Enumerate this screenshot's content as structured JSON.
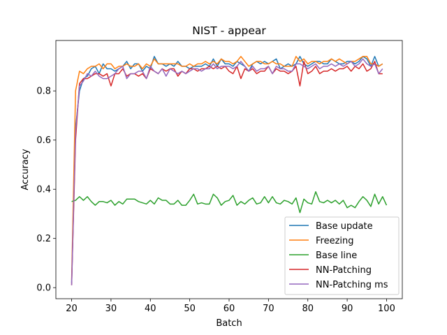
{
  "chart_data": {
    "type": "line",
    "title": "NIST - appear",
    "xlabel": "Batch",
    "ylabel": "Accuracy",
    "xlim": [
      16,
      104
    ],
    "ylim": [
      -0.045,
      1.005
    ],
    "xticks": [
      20,
      30,
      40,
      50,
      60,
      70,
      80,
      90,
      100
    ],
    "xtick_labels": [
      "20",
      "30",
      "40",
      "50",
      "60",
      "70",
      "80",
      "90",
      "100"
    ],
    "yticks": [
      0.0,
      0.2,
      0.4,
      0.6,
      0.8
    ],
    "ytick_labels": [
      "0.0",
      "0.2",
      "0.4",
      "0.6",
      "0.8"
    ],
    "legend_position": "lower-right",
    "grid": false,
    "x_start": 20,
    "series": [
      {
        "name": "Base update",
        "color": "#1f77b4",
        "values": [
          0.02,
          0.65,
          0.8,
          0.85,
          0.86,
          0.89,
          0.9,
          0.87,
          0.91,
          0.89,
          0.89,
          0.88,
          0.89,
          0.9,
          0.92,
          0.89,
          0.91,
          0.91,
          0.88,
          0.9,
          0.89,
          0.94,
          0.91,
          0.91,
          0.9,
          0.91,
          0.9,
          0.92,
          0.9,
          0.9,
          0.89,
          0.9,
          0.9,
          0.9,
          0.91,
          0.9,
          0.93,
          0.9,
          0.93,
          0.91,
          0.91,
          0.9,
          0.92,
          0.91,
          0.9,
          0.88,
          0.91,
          0.92,
          0.91,
          0.92,
          0.91,
          0.92,
          0.93,
          0.89,
          0.9,
          0.91,
          0.9,
          0.91,
          0.94,
          0.91,
          0.9,
          0.91,
          0.92,
          0.92,
          0.91,
          0.91,
          0.93,
          0.92,
          0.91,
          0.91,
          0.92,
          0.92,
          0.91,
          0.92,
          0.94,
          0.93,
          0.9,
          0.94,
          0.9,
          0.91
        ]
      },
      {
        "name": "Freezing",
        "color": "#ff7f0e",
        "values": [
          0.03,
          0.8,
          0.88,
          0.87,
          0.89,
          0.9,
          0.9,
          0.91,
          0.89,
          0.91,
          0.91,
          0.89,
          0.9,
          0.9,
          0.91,
          0.9,
          0.9,
          0.91,
          0.89,
          0.91,
          0.9,
          0.93,
          0.91,
          0.91,
          0.91,
          0.91,
          0.91,
          0.91,
          0.9,
          0.9,
          0.91,
          0.9,
          0.91,
          0.91,
          0.92,
          0.91,
          0.92,
          0.91,
          0.93,
          0.92,
          0.92,
          0.91,
          0.92,
          0.94,
          0.92,
          0.9,
          0.91,
          0.92,
          0.92,
          0.91,
          0.91,
          0.92,
          0.91,
          0.91,
          0.9,
          0.9,
          0.9,
          0.94,
          0.92,
          0.93,
          0.91,
          0.92,
          0.92,
          0.91,
          0.92,
          0.92,
          0.93,
          0.92,
          0.93,
          0.92,
          0.91,
          0.92,
          0.92,
          0.93,
          0.94,
          0.94,
          0.91,
          0.91,
          0.9,
          0.91
        ]
      },
      {
        "name": "Base line",
        "color": "#2ca02c",
        "values": [
          0.35,
          0.355,
          0.37,
          0.355,
          0.37,
          0.35,
          0.335,
          0.35,
          0.35,
          0.345,
          0.355,
          0.335,
          0.35,
          0.34,
          0.36,
          0.36,
          0.36,
          0.35,
          0.345,
          0.34,
          0.355,
          0.34,
          0.365,
          0.355,
          0.355,
          0.34,
          0.34,
          0.355,
          0.335,
          0.335,
          0.355,
          0.38,
          0.34,
          0.345,
          0.34,
          0.34,
          0.38,
          0.365,
          0.335,
          0.35,
          0.355,
          0.375,
          0.335,
          0.35,
          0.34,
          0.355,
          0.365,
          0.34,
          0.345,
          0.37,
          0.345,
          0.37,
          0.345,
          0.34,
          0.355,
          0.35,
          0.34,
          0.365,
          0.305,
          0.36,
          0.345,
          0.34,
          0.39,
          0.35,
          0.345,
          0.355,
          0.345,
          0.355,
          0.34,
          0.355,
          0.325,
          0.335,
          0.325,
          0.35,
          0.37,
          0.355,
          0.33,
          0.38,
          0.34,
          0.37,
          0.335
        ]
      },
      {
        "name": "NN-Patching",
        "color": "#d62728",
        "values": [
          0.01,
          0.6,
          0.83,
          0.85,
          0.85,
          0.86,
          0.87,
          0.87,
          0.86,
          0.87,
          0.82,
          0.87,
          0.87,
          0.89,
          0.86,
          0.87,
          0.87,
          0.86,
          0.87,
          0.85,
          0.89,
          0.88,
          0.87,
          0.89,
          0.88,
          0.89,
          0.89,
          0.86,
          0.88,
          0.87,
          0.89,
          0.89,
          0.88,
          0.89,
          0.89,
          0.9,
          0.89,
          0.9,
          0.89,
          0.9,
          0.88,
          0.87,
          0.9,
          0.85,
          0.89,
          0.88,
          0.89,
          0.87,
          0.88,
          0.88,
          0.9,
          0.87,
          0.89,
          0.88,
          0.88,
          0.87,
          0.88,
          0.9,
          0.82,
          0.92,
          0.87,
          0.88,
          0.9,
          0.87,
          0.88,
          0.88,
          0.89,
          0.88,
          0.89,
          0.89,
          0.9,
          0.88,
          0.9,
          0.89,
          0.91,
          0.88,
          0.89,
          0.92,
          0.87,
          0.87
        ]
      },
      {
        "name": "NN-Patching ms",
        "color": "#9467bd",
        "values": [
          0.01,
          0.63,
          0.82,
          0.84,
          0.87,
          0.86,
          0.88,
          0.86,
          0.85,
          0.85,
          0.86,
          0.87,
          0.89,
          0.9,
          0.85,
          0.87,
          0.87,
          0.88,
          0.88,
          0.85,
          0.9,
          0.88,
          0.87,
          0.89,
          0.86,
          0.89,
          0.88,
          0.87,
          0.88,
          0.87,
          0.88,
          0.89,
          0.89,
          0.88,
          0.89,
          0.89,
          0.91,
          0.89,
          0.9,
          0.9,
          0.9,
          0.89,
          0.9,
          0.92,
          0.9,
          0.88,
          0.9,
          0.88,
          0.89,
          0.89,
          0.9,
          0.87,
          0.9,
          0.89,
          0.89,
          0.88,
          0.88,
          0.91,
          0.91,
          0.9,
          0.89,
          0.9,
          0.91,
          0.89,
          0.9,
          0.9,
          0.91,
          0.9,
          0.91,
          0.9,
          0.91,
          0.92,
          0.9,
          0.91,
          0.93,
          0.91,
          0.9,
          0.91,
          0.87,
          0.89
        ]
      }
    ]
  }
}
